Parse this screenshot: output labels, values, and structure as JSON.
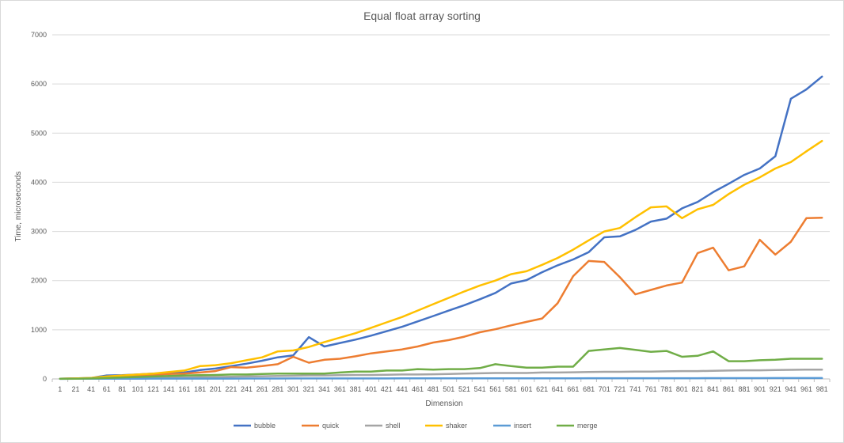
{
  "chart_data": {
    "type": "line",
    "title": "Equal float array sorting",
    "xlabel": "Dimension",
    "ylabel": "Time, microseconds",
    "ylim": [
      0,
      7000
    ],
    "y_ticks": [
      0,
      1000,
      2000,
      3000,
      4000,
      5000,
      6000,
      7000
    ],
    "grid": true,
    "legend_position": "bottom",
    "x": [
      1,
      21,
      41,
      61,
      81,
      101,
      121,
      141,
      161,
      181,
      201,
      221,
      241,
      261,
      281,
      301,
      321,
      341,
      361,
      381,
      401,
      421,
      441,
      461,
      481,
      501,
      521,
      541,
      561,
      581,
      601,
      621,
      641,
      661,
      681,
      701,
      721,
      741,
      761,
      781,
      801,
      821,
      841,
      861,
      881,
      901,
      921,
      941,
      961,
      981
    ],
    "series": [
      {
        "name": "bubble",
        "color": "#4472c4",
        "values": [
          5,
          10,
          20,
          70,
          75,
          90,
          110,
          115,
          130,
          180,
          210,
          260,
          310,
          370,
          440,
          480,
          850,
          660,
          730,
          800,
          880,
          970,
          1060,
          1170,
          1280,
          1390,
          1500,
          1620,
          1750,
          1940,
          2010,
          2170,
          2310,
          2430,
          2580,
          2880,
          2900,
          3030,
          3200,
          3260,
          3470,
          3600,
          3800,
          3970,
          4150,
          4280,
          4530,
          5700,
          5890,
          6150
        ]
      },
      {
        "name": "quick",
        "color": "#ed7d31",
        "values": [
          5,
          10,
          15,
          40,
          60,
          70,
          80,
          100,
          110,
          130,
          160,
          240,
          230,
          260,
          300,
          450,
          330,
          390,
          410,
          460,
          520,
          560,
          600,
          660,
          740,
          790,
          860,
          950,
          1010,
          1090,
          1160,
          1230,
          1540,
          2090,
          2400,
          2380,
          2070,
          1720,
          1810,
          1900,
          1960,
          2560,
          2670,
          2210,
          2290,
          2830,
          2530,
          2790,
          3270,
          3280
        ]
      },
      {
        "name": "shell",
        "color": "#a5a5a5",
        "values": [
          2,
          5,
          8,
          10,
          15,
          20,
          25,
          25,
          30,
          35,
          40,
          45,
          50,
          55,
          60,
          65,
          70,
          70,
          75,
          80,
          80,
          85,
          90,
          90,
          95,
          100,
          110,
          115,
          120,
          120,
          120,
          130,
          130,
          135,
          140,
          145,
          145,
          150,
          150,
          155,
          160,
          160,
          165,
          170,
          175,
          175,
          180,
          185,
          190,
          190
        ]
      },
      {
        "name": "shaker",
        "color": "#ffc000",
        "values": [
          5,
          10,
          20,
          50,
          70,
          90,
          110,
          140,
          170,
          260,
          280,
          320,
          380,
          440,
          560,
          580,
          650,
          750,
          840,
          930,
          1040,
          1150,
          1260,
          1390,
          1520,
          1650,
          1780,
          1900,
          2000,
          2130,
          2190,
          2320,
          2460,
          2630,
          2820,
          3000,
          3070,
          3290,
          3490,
          3510,
          3270,
          3450,
          3540,
          3760,
          3950,
          4100,
          4280,
          4410,
          4630,
          4840
        ]
      },
      {
        "name": "insert",
        "color": "#5b9bd5",
        "values": [
          2,
          3,
          4,
          5,
          5,
          5,
          6,
          6,
          6,
          7,
          7,
          7,
          8,
          8,
          8,
          9,
          9,
          9,
          10,
          10,
          10,
          10,
          11,
          11,
          11,
          11,
          12,
          12,
          12,
          12,
          13,
          13,
          13,
          13,
          14,
          14,
          14,
          14,
          15,
          15,
          15,
          15,
          16,
          16,
          16,
          16,
          17,
          17,
          17,
          17
        ]
      },
      {
        "name": "merge",
        "color": "#70ad47",
        "values": [
          3,
          5,
          10,
          20,
          30,
          40,
          50,
          60,
          70,
          75,
          80,
          90,
          90,
          100,
          110,
          110,
          110,
          110,
          130,
          150,
          150,
          170,
          170,
          200,
          190,
          200,
          200,
          220,
          300,
          260,
          230,
          230,
          250,
          250,
          570,
          600,
          630,
          590,
          550,
          570,
          450,
          470,
          560,
          360,
          360,
          380,
          390,
          410,
          410,
          410
        ]
      }
    ]
  }
}
